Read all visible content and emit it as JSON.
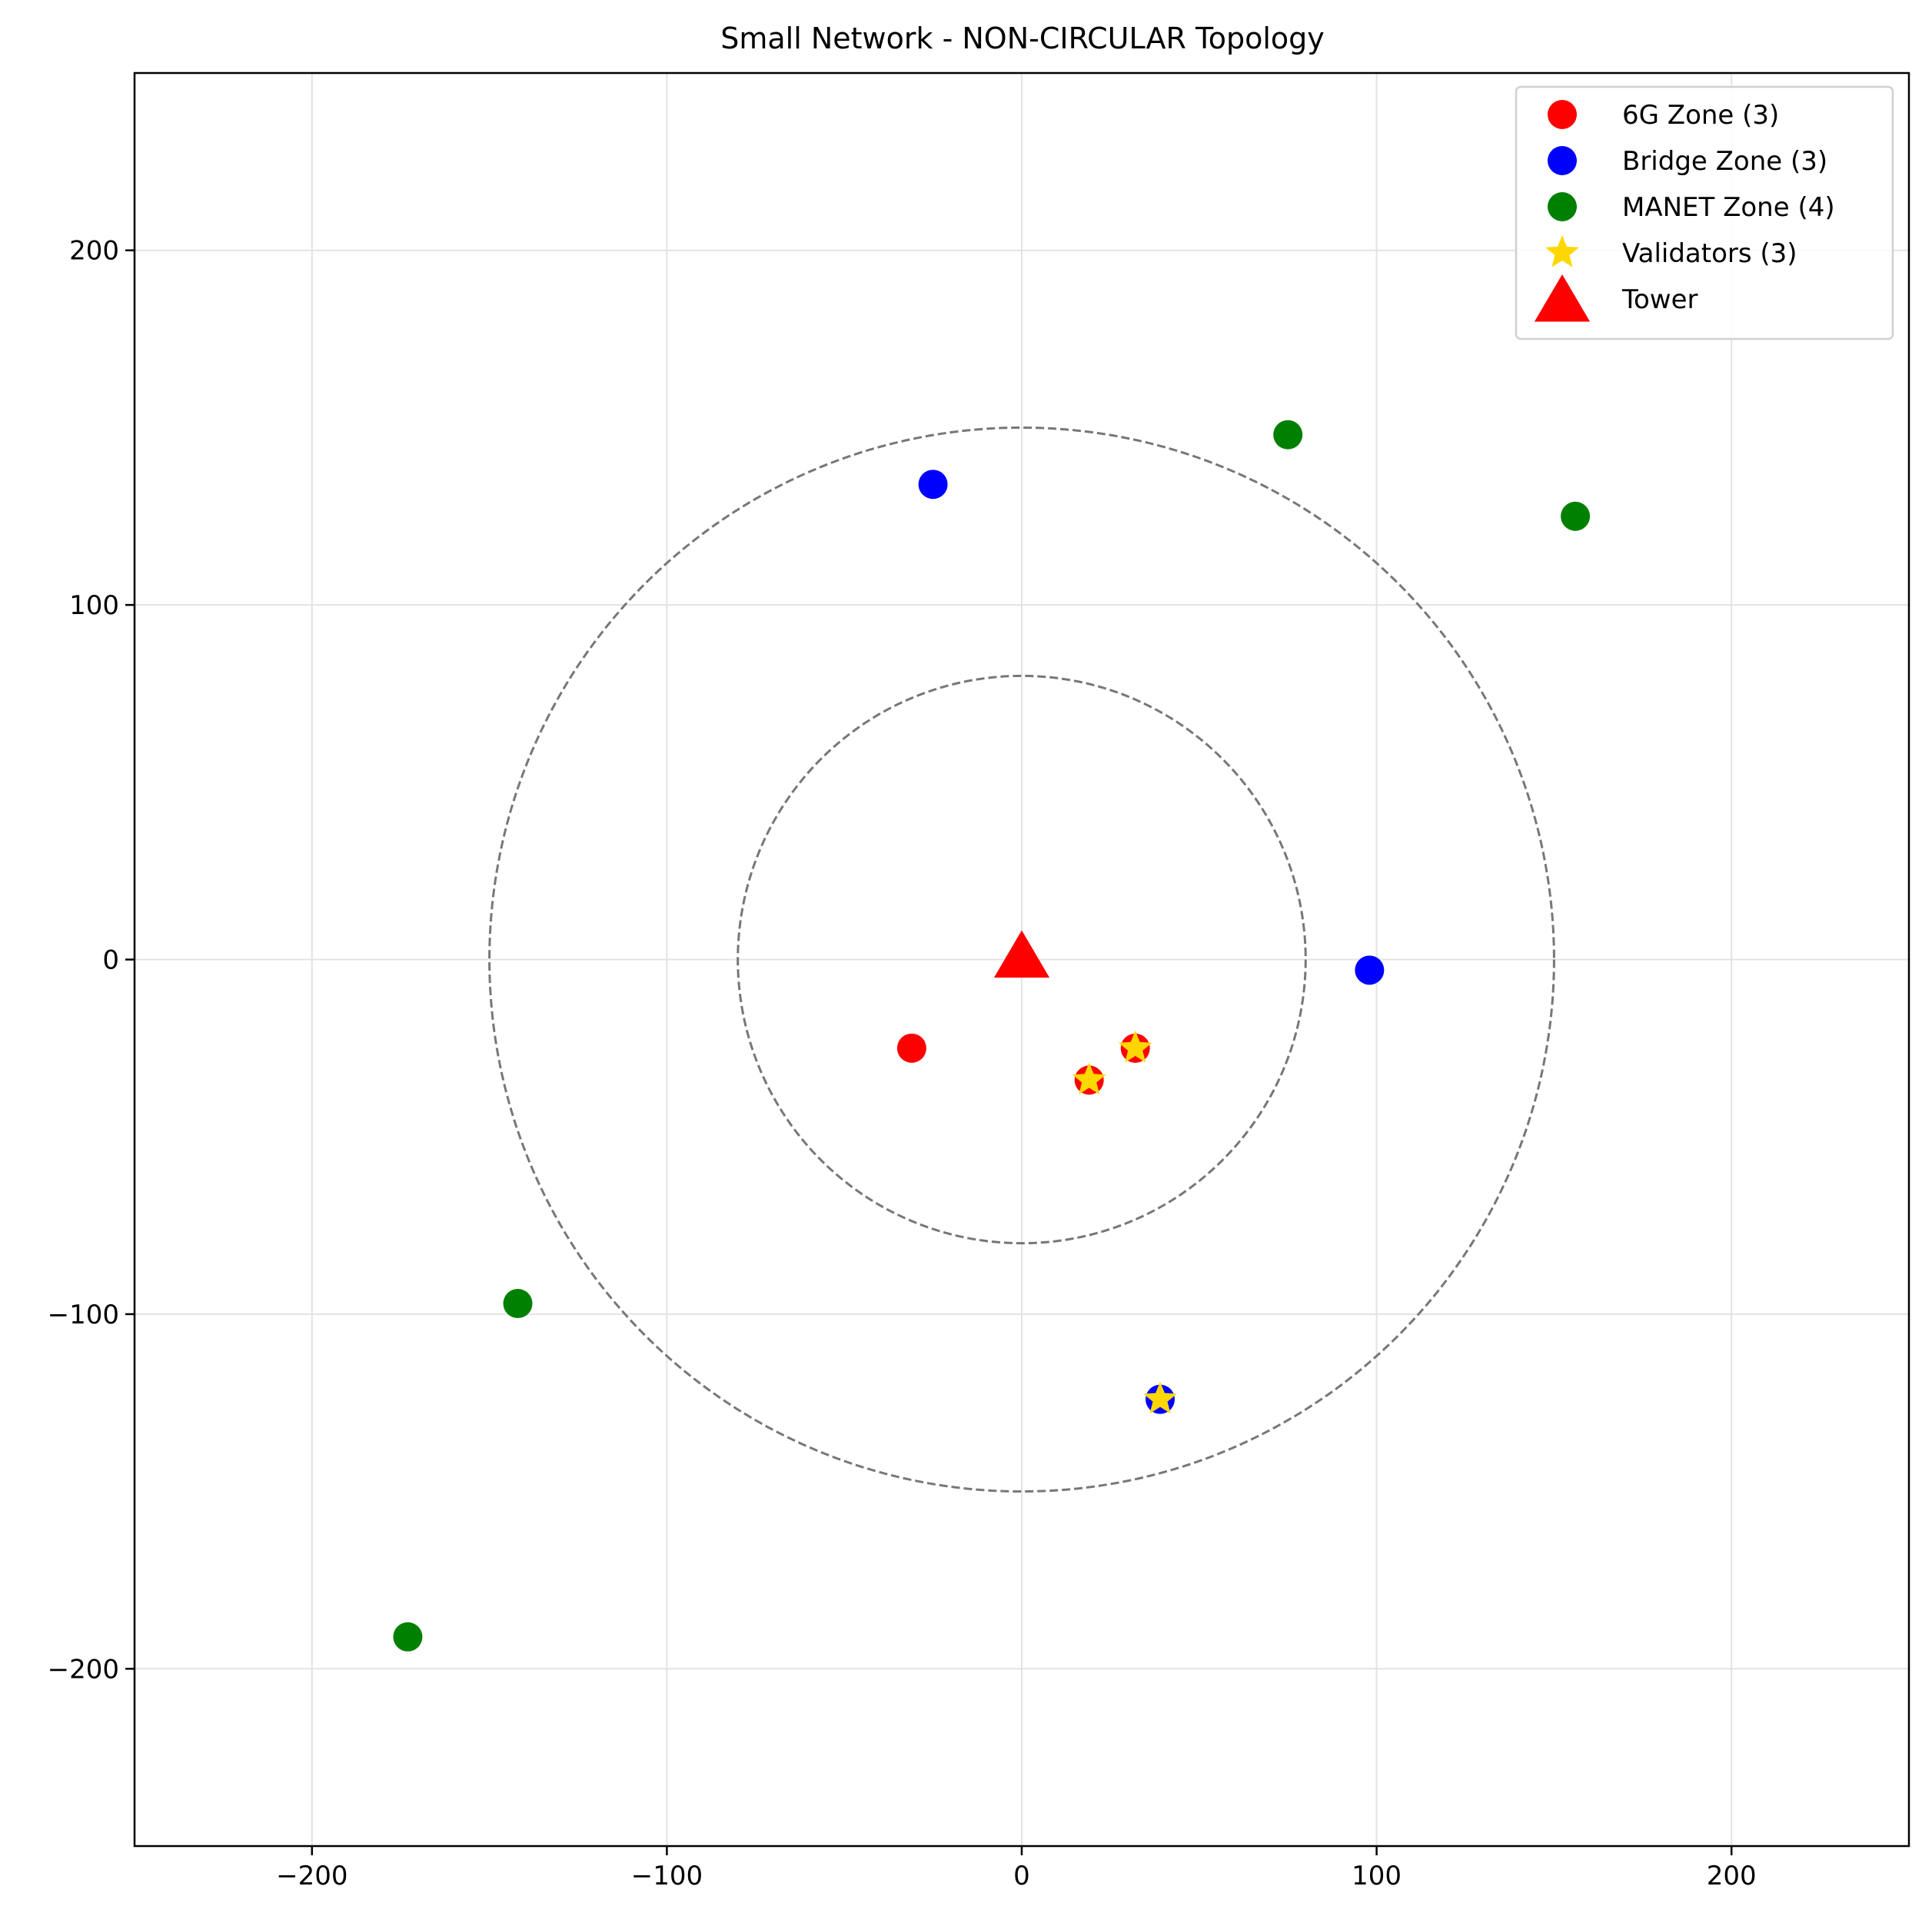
{
  "chart_data": {
    "type": "scatter",
    "title": "Small Network - NON-CIRCULAR Topology",
    "xlabel": "",
    "ylabel": "",
    "xlim": [
      -250,
      250
    ],
    "ylim": [
      -250,
      250
    ],
    "xticks": [
      -200,
      -100,
      0,
      100,
      200
    ],
    "yticks": [
      -200,
      -100,
      0,
      100,
      200
    ],
    "xtick_labels": [
      "−200",
      "−100",
      "0",
      "100",
      "200"
    ],
    "ytick_labels": [
      "−200",
      "−100",
      "0",
      "100",
      "200"
    ],
    "grid": true,
    "legend_position": "top-right",
    "rings": [
      {
        "radius": 80,
        "color": "#777777",
        "style": "dashed"
      },
      {
        "radius": 150,
        "color": "#777777",
        "style": "dashed"
      }
    ],
    "series": [
      {
        "name": "6G Zone (3)",
        "color": "#ff0000",
        "marker": "circle",
        "points": [
          {
            "x": -31,
            "y": -25
          },
          {
            "x": 19,
            "y": -34
          },
          {
            "x": 32,
            "y": -25
          }
        ]
      },
      {
        "name": "Bridge Zone (3)",
        "color": "#0000ff",
        "marker": "circle",
        "points": [
          {
            "x": -25,
            "y": 134
          },
          {
            "x": 98,
            "y": -3
          },
          {
            "x": 39,
            "y": -124
          }
        ]
      },
      {
        "name": "MANET Zone (4)",
        "color": "#008000",
        "marker": "circle",
        "points": [
          {
            "x": 75,
            "y": 148
          },
          {
            "x": 156,
            "y": 125
          },
          {
            "x": -142,
            "y": -97
          },
          {
            "x": -173,
            "y": -191
          }
        ]
      },
      {
        "name": "Validators (3)",
        "color": "#ffd700",
        "marker": "star",
        "points": [
          {
            "x": 19,
            "y": -34
          },
          {
            "x": 32,
            "y": -25
          },
          {
            "x": 39,
            "y": -124
          }
        ]
      },
      {
        "name": "Tower",
        "color": "#ff0000",
        "marker": "triangle",
        "points": [
          {
            "x": 0,
            "y": 0
          }
        ]
      }
    ]
  }
}
